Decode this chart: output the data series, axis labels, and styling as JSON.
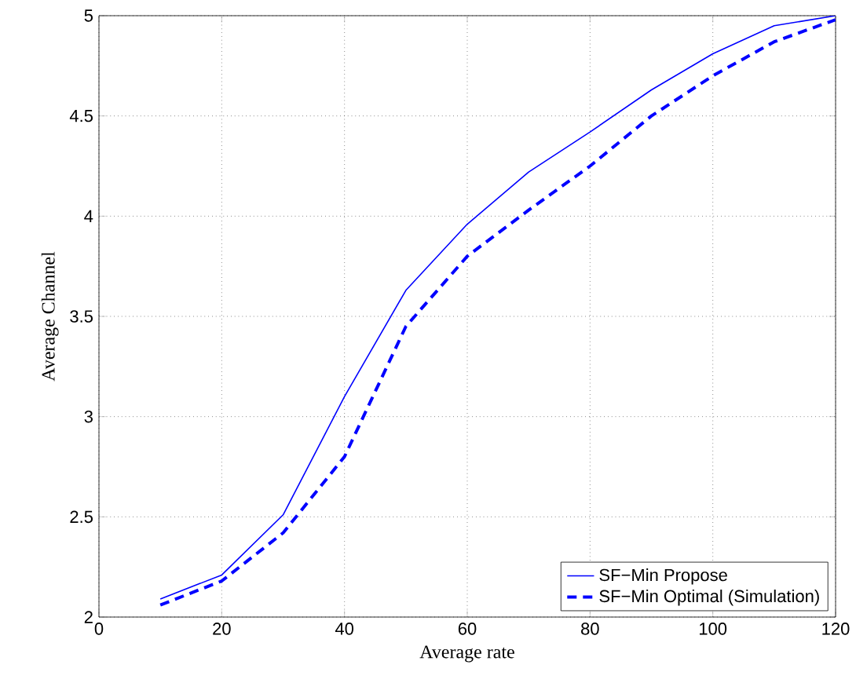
{
  "chart_data": {
    "type": "line",
    "xlabel": "Average rate",
    "ylabel": "Average Channel",
    "x": [
      10,
      20,
      30,
      40,
      50,
      60,
      70,
      80,
      90,
      100,
      110,
      120
    ],
    "series": [
      {
        "name": "SF−Min Propose",
        "color": "#0000ff",
        "line_style": "solid",
        "values": [
          2.09,
          2.21,
          2.51,
          3.1,
          3.63,
          3.96,
          4.22,
          4.42,
          4.63,
          4.81,
          4.95,
          5.0
        ]
      },
      {
        "name": "SF−Min Optimal (Simulation)",
        "color": "#0000ff",
        "line_style": "dashed",
        "values": [
          2.06,
          2.18,
          2.42,
          2.8,
          3.45,
          3.8,
          4.03,
          4.25,
          4.5,
          4.7,
          4.87,
          4.98
        ]
      }
    ],
    "xlim": [
      0,
      120
    ],
    "ylim": [
      2,
      5
    ],
    "xticks": [
      0,
      20,
      40,
      60,
      80,
      100,
      120
    ],
    "yticks": [
      2,
      2.5,
      3,
      3.5,
      4,
      4.5,
      5
    ],
    "grid": true,
    "legend": "bottom right",
    "marker": "none"
  }
}
